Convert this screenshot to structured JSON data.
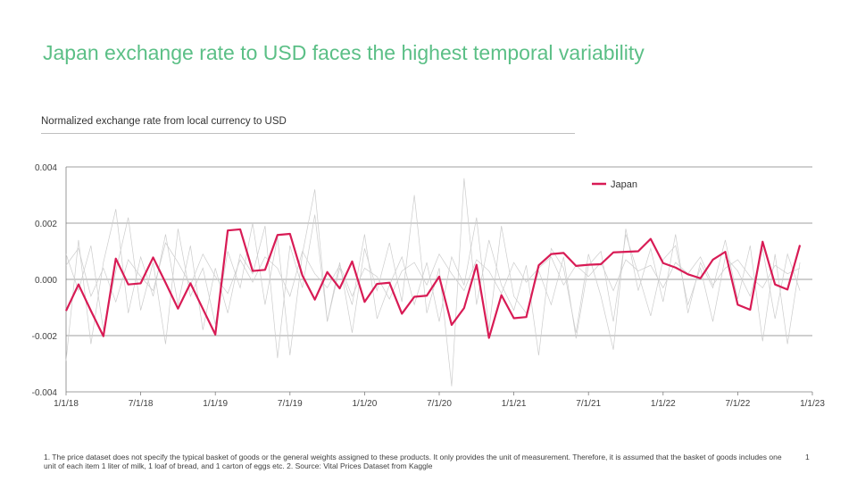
{
  "title": "Japan exchange rate to USD faces the highest temporal variability",
  "subtitle": "Normalized exchange rate from local currency to USD",
  "footnote": "1. The price dataset does not specify the typical basket of goods or the general weights assigned to these products. It only provides the unit of measurement. Therefore, it is assumed that the basket of goods includes one unit of each item 1 liter of milk, 1 loaf of bread, and 1 carton of eggs etc. 2.  Source: Vital Prices Dataset from Kaggle",
  "page_number": "1",
  "colors": {
    "title": "#5bbf86",
    "highlight": "#d81b55",
    "background_series": "#cccccc",
    "gridline": "#7f7f7f"
  },
  "chart_data": {
    "type": "line",
    "xlabel": "",
    "ylabel": "",
    "ylim": [
      -0.004,
      0.004
    ],
    "y_ticks": [
      "0.004",
      "0.002",
      "0.000",
      "-0.002",
      "-0.004"
    ],
    "y_tick_values": [
      0.004,
      0.002,
      0.0,
      -0.002,
      -0.004
    ],
    "x_ticks": [
      "1/1/18",
      "7/1/18",
      "1/1/19",
      "7/1/19",
      "1/1/20",
      "7/1/20",
      "1/1/21",
      "7/1/21",
      "1/1/22",
      "7/1/22",
      "1/1/23"
    ],
    "x_tick_months": [
      0,
      6,
      12,
      18,
      24,
      30,
      36,
      42,
      48,
      54,
      60
    ],
    "legend": {
      "position": "top-right",
      "entries": [
        "Japan"
      ]
    },
    "x_months": [
      0,
      1,
      2,
      3,
      4,
      5,
      6,
      7,
      8,
      9,
      10,
      11,
      12,
      13,
      14,
      15,
      16,
      17,
      18,
      19,
      20,
      21,
      22,
      23,
      24,
      25,
      26,
      27,
      28,
      29,
      30,
      31,
      32,
      33,
      34,
      35,
      36,
      37,
      38,
      39,
      40,
      41,
      42,
      43,
      44,
      45,
      46,
      47,
      48,
      49,
      50,
      51,
      52,
      53,
      54,
      55,
      56,
      57,
      58,
      59
    ],
    "series": [
      {
        "name": "Japan",
        "highlight": true,
        "values": [
          -0.00112,
          -0.00018,
          -0.00112,
          -0.00202,
          0.00074,
          -0.00018,
          -0.00014,
          0.00078,
          -0.00012,
          -0.00104,
          -0.00014,
          -0.00105,
          -0.00196,
          0.00174,
          0.00178,
          0.0003,
          0.00034,
          0.00158,
          0.00162,
          0.00014,
          -0.00072,
          0.00026,
          -0.00032,
          0.00064,
          -0.0008,
          -0.00016,
          -0.00012,
          -0.00122,
          -0.00062,
          -0.00058,
          0.0001,
          -0.00162,
          -0.00102,
          0.00052,
          -0.00208,
          -0.00056,
          -0.00138,
          -0.00134,
          0.0005,
          0.0009,
          0.00094,
          0.00048,
          0.00052,
          0.00054,
          0.00096,
          0.00098,
          0.001,
          0.00144,
          0.00058,
          0.00042,
          0.00018,
          4e-05,
          0.0007,
          0.00098,
          -0.0009,
          -0.00108,
          0.00134,
          -0.00018,
          -0.00036,
          0.00122
        ]
      },
      {
        "values": [
          0.0009,
          -0.0004,
          0.0012,
          -0.0018,
          0.0003,
          0.0022,
          -0.0011,
          0.0006,
          -0.0023,
          0.0018,
          -0.0006,
          0.0004,
          -0.0016,
          0.001,
          -0.0003,
          0.002,
          -0.0009,
          0.0015,
          -0.0027,
          0.0009,
          0.0032,
          -0.0015,
          0.0006,
          -0.0019,
          0.0011,
          -0.0004,
          0.0013,
          -0.0008,
          0.003,
          -0.0012,
          0.0004,
          -0.0038,
          0.0036,
          -0.0009,
          0.0014,
          -0.0002,
          -0.0011,
          0.0005,
          -0.0027,
          0.0011,
          0.0004,
          -0.0019,
          0.0009,
          -0.0006,
          -0.0025,
          0.0018,
          -0.0004,
          0.0011,
          -0.0008,
          0.0016,
          -0.0012,
          0.0006,
          -0.0003,
          0.0014,
          -0.0007,
          0.0012,
          -0.0022,
          0.0009,
          -0.0023,
          0.0006
        ]
      },
      {
        "values": [
          -0.0029,
          0.0014,
          -0.0023,
          0.0006,
          0.0025,
          -0.0012,
          0.0008,
          -0.0006,
          0.0016,
          -0.0009,
          0.0012,
          -0.0018,
          0.0004,
          -0.0012,
          0.0009,
          0.0002,
          0.0019,
          -0.0028,
          0.0012,
          -0.0003,
          0.0023,
          -0.0015,
          0.0004,
          -0.0009,
          0.0016,
          -0.0014,
          -0.0002,
          0.0008,
          -0.0009,
          0.0006,
          -0.0015,
          0.0008,
          -0.0002,
          0.0022,
          -0.0018,
          0.0019,
          -0.0006,
          -0.0012,
          0.0003,
          -0.0009,
          0.0008,
          -0.0021,
          0.0005,
          0.001,
          -0.0015,
          0.0016,
          0.0002,
          -0.0013,
          0.0007,
          0.0012,
          -0.0009,
          0.0004,
          -0.0015,
          0.0008,
          0.0003,
          -0.0006,
          0.0011,
          -0.0014,
          0.0009,
          -0.0004
        ]
      },
      {
        "values": [
          0.0005,
          0.0011,
          -0.0006,
          0.0004,
          -0.0008,
          0.0007,
          0.0001,
          -0.0004,
          0.0013,
          0.0006,
          -0.0002,
          0.0009,
          0.0001,
          -0.0005,
          0.0007,
          -0.0001,
          0.0008,
          0.0004,
          -0.0006,
          0.001,
          0.0002,
          -0.0003,
          0.0005,
          -0.0006,
          0.0004,
          0.0001,
          -0.0007,
          0.0003,
          0.0006,
          -0.0002,
          0.0009,
          0.0002,
          -0.0004,
          0.0007,
          0.0003,
          -0.0005,
          0.0006,
          -0.0001,
          0.0004,
          0.0008,
          -0.0002,
          0.0005,
          0.0001,
          0.0006,
          -0.0004,
          0.0007,
          0.0003,
          0.0005,
          -0.0003,
          0.0006,
          0.0002,
          0.0008,
          -0.0002,
          0.0004,
          0.0007,
          0.0001,
          -0.0003,
          0.0005,
          0.0002,
          0.0004
        ]
      }
    ]
  }
}
